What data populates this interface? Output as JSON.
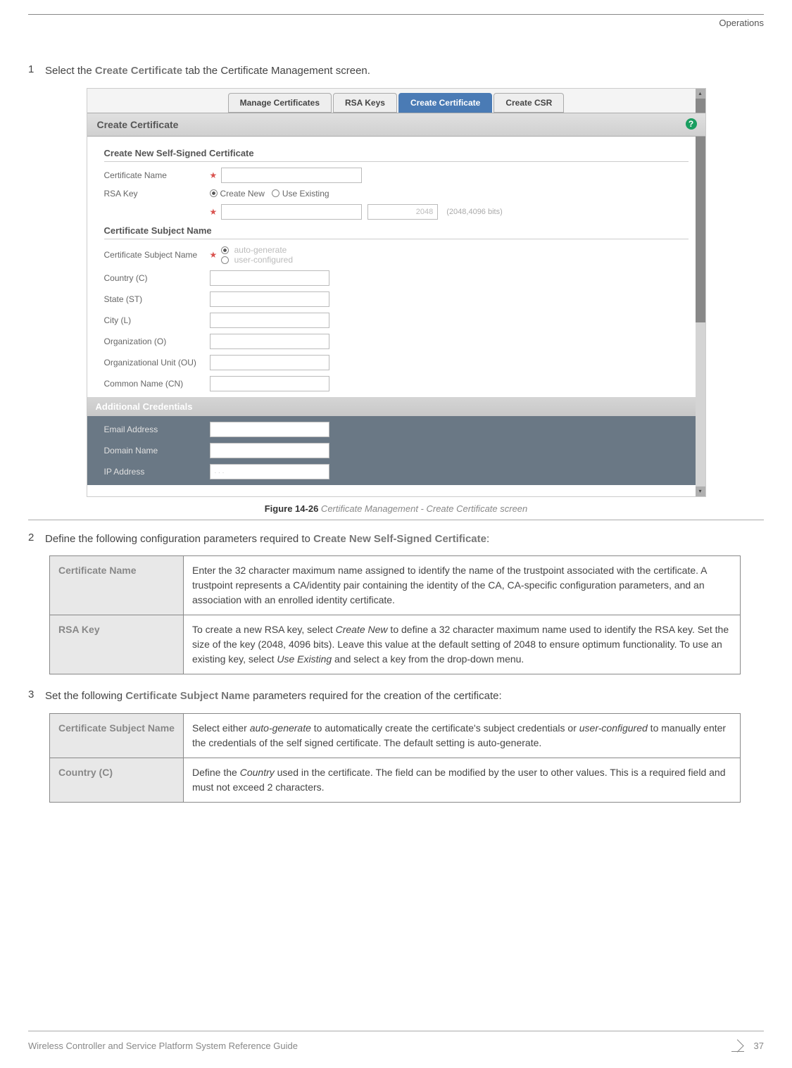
{
  "header": {
    "section": "Operations"
  },
  "step1": {
    "num": "1",
    "prefix": "Select the ",
    "bold": "Create Certificate",
    "suffix": " tab the Certificate Management screen."
  },
  "screenshot": {
    "tabs": {
      "manage": "Manage Certificates",
      "rsa": "RSA Keys",
      "create_cert": "Create Certificate",
      "create_csr": "Create CSR"
    },
    "panel_title": "Create Certificate",
    "section1": "Create New Self-Signed Certificate",
    "cert_name_label": "Certificate Name",
    "rsa_key_label": "RSA Key",
    "radio_create_new": "Create New",
    "radio_use_existing": "Use Existing",
    "bits_placeholder": "2048",
    "bits_hint": "(2048,4096 bits)",
    "section2": "Certificate Subject Name",
    "csn_label": "Certificate Subject Name",
    "radio_auto": "auto-generate",
    "radio_user": "user-configured",
    "country_label": "Country (C)",
    "state_label": "State (ST)",
    "city_label": "City (L)",
    "org_label": "Organization (O)",
    "ou_label": "Organizational Unit (OU)",
    "cn_label": "Common Name (CN)",
    "section3": "Additional Credentials",
    "email_label": "Email Address",
    "domain_label": "Domain Name",
    "ip_label": "IP Address",
    "ip_placeholder": "   .       .       .   "
  },
  "figcaption": {
    "bold": "Figure 14-26",
    "italic": "  Certificate Management - Create Certificate screen"
  },
  "step2": {
    "num": "2",
    "prefix": "Define the following configuration parameters required to ",
    "bold": "Create New Self-Signed Certificate",
    "suffix": ":"
  },
  "table1": {
    "rows": [
      {
        "key": "Certificate Name",
        "value": "Enter the 32 character maximum name assigned to identify the name of the trustpoint associated with the certificate. A trustpoint represents a CA/identity pair containing the identity of the CA, CA-specific configuration parameters, and an association with an enrolled identity certificate."
      },
      {
        "key": "RSA Key",
        "value_parts": [
          {
            "t": "To create a new RSA key, select "
          },
          {
            "t": "Create New",
            "i": true
          },
          {
            "t": " to define a 32 character maximum name used to identify the RSA key. Set the size of the key (2048, 4096 bits). Leave this value at the default setting of 2048 to ensure optimum functionality. To use an existing key, select "
          },
          {
            "t": "Use Existing",
            "i": true
          },
          {
            "t": " and select a key from the drop-down menu."
          }
        ]
      }
    ]
  },
  "step3": {
    "num": "3",
    "prefix": "Set the following ",
    "bold": "Certificate Subject Name",
    "suffix": " parameters required for the creation of the certificate:"
  },
  "table2": {
    "rows": [
      {
        "key": "Certificate Subject Name",
        "value_parts": [
          {
            "t": "Select either "
          },
          {
            "t": "auto-generate",
            "i": true
          },
          {
            "t": " to automatically create the certificate's subject credentials or "
          },
          {
            "t": "user-configured",
            "i": true
          },
          {
            "t": " to manually enter the credentials of the self signed certificate. The default setting is auto-generate."
          }
        ]
      },
      {
        "key": "Country (C)",
        "value_parts": [
          {
            "t": "Define the "
          },
          {
            "t": "Country",
            "i": true
          },
          {
            "t": " used in the certificate. The field can be modified by the user to other values. This is a required field and must not exceed 2 characters."
          }
        ]
      }
    ]
  },
  "footer": {
    "left": "Wireless Controller and Service Platform System Reference Guide",
    "page": "37"
  }
}
